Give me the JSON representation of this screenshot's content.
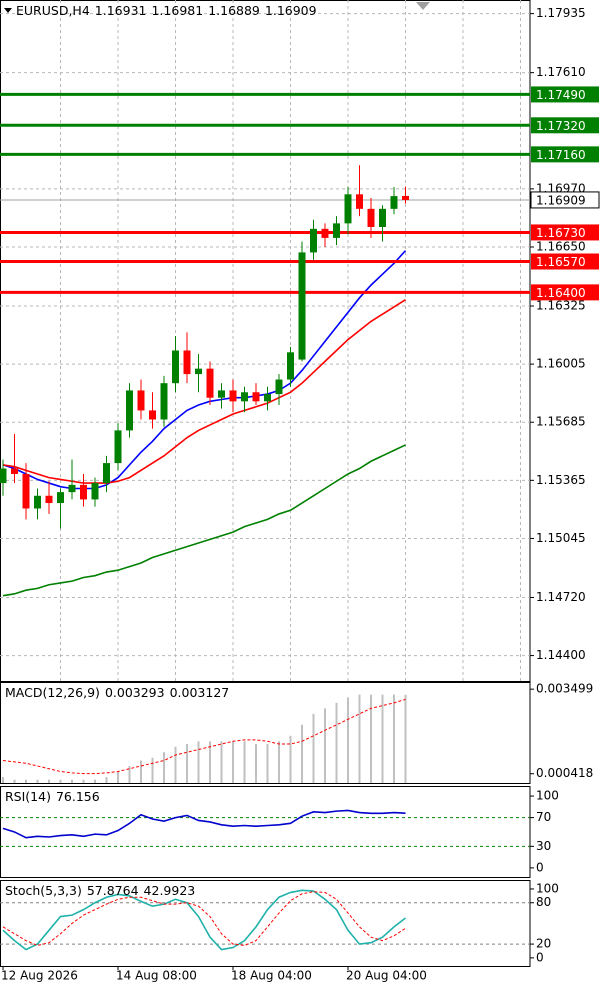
{
  "chart_data": [
    {
      "type": "candlestick",
      "title": "EURUSD,H4",
      "categories": [
        "12 Aug 2026",
        null,
        null,
        null,
        null,
        null,
        null,
        null,
        null,
        null,
        "14 Aug 08:00",
        null,
        null,
        null,
        null,
        null,
        null,
        null,
        null,
        null,
        "18 Aug 04:00",
        null,
        null,
        null,
        null,
        null,
        null,
        null,
        null,
        null,
        "20 Aug 04:00",
        null,
        null,
        null,
        null,
        null
      ],
      "open": [
        1.1535,
        1.1543,
        1.154,
        1.1521,
        1.1528,
        1.1524,
        1.153,
        1.1534,
        1.1526,
        1.1535,
        1.1546,
        1.1564,
        1.1586,
        1.1575,
        1.157,
        1.159,
        1.1608,
        1.1595,
        1.1598,
        1.1582,
        1.1586,
        1.158,
        1.1585,
        1.158,
        1.1584,
        1.1592,
        1.1603,
        1.1662,
        1.1675,
        1.167,
        1.1678,
        1.1694,
        1.1686,
        1.1676,
        1.1686,
        1.16931
      ],
      "high": [
        1.1548,
        1.1562,
        1.1546,
        1.1532,
        1.1536,
        1.1532,
        1.1548,
        1.154,
        1.1538,
        1.155,
        1.1568,
        1.159,
        1.1592,
        1.1585,
        1.1594,
        1.1616,
        1.1618,
        1.1606,
        1.1602,
        1.159,
        1.1592,
        1.1588,
        1.159,
        1.1588,
        1.1595,
        1.161,
        1.1668,
        1.168,
        1.1678,
        1.1682,
        1.1698,
        1.171,
        1.1692,
        1.1688,
        1.1698,
        1.16981
      ],
      "low": [
        1.1528,
        1.1535,
        1.1515,
        1.1515,
        1.1518,
        1.151,
        1.1526,
        1.1522,
        1.1522,
        1.153,
        1.1542,
        1.156,
        1.157,
        1.1565,
        1.1566,
        1.1585,
        1.159,
        1.1585,
        1.1578,
        1.1576,
        1.1574,
        1.1574,
        1.1578,
        1.1575,
        1.1578,
        1.1588,
        1.1602,
        1.1658,
        1.1665,
        1.1666,
        1.1672,
        1.1682,
        1.167,
        1.1668,
        1.1683,
        1.16889
      ],
      "close": [
        1.1543,
        1.154,
        1.1521,
        1.1528,
        1.1524,
        1.153,
        1.1534,
        1.1526,
        1.1535,
        1.1546,
        1.1564,
        1.1586,
        1.1575,
        1.157,
        1.159,
        1.1608,
        1.1595,
        1.1598,
        1.1582,
        1.1586,
        1.158,
        1.1585,
        1.158,
        1.1584,
        1.1592,
        1.1607,
        1.1662,
        1.1675,
        1.167,
        1.1678,
        1.1694,
        1.1686,
        1.1676,
        1.1686,
        1.1693,
        1.16909
      ],
      "up_color": "#008000",
      "down_color": "#ff0000",
      "lines": [
        {
          "color": "#0000ff",
          "values": [
            1.1545,
            1.1543,
            1.154,
            1.1537,
            1.1535,
            1.1533,
            1.1532,
            1.1532,
            1.1532,
            1.1534,
            1.1538,
            1.1545,
            1.1552,
            1.1558,
            1.1565,
            1.157,
            1.1575,
            1.1578,
            1.158,
            1.1581,
            1.1582,
            1.1582,
            1.1583,
            1.1584,
            1.1586,
            1.159,
            1.1597,
            1.1605,
            1.1613,
            1.1621,
            1.1629,
            1.1637,
            1.1644,
            1.165,
            1.1656,
            1.1663
          ]
        },
        {
          "color": "#ff0000",
          "values": [
            1.1545,
            1.1544,
            1.1542,
            1.154,
            1.1538,
            1.1537,
            1.1536,
            1.1535,
            1.1535,
            1.1535,
            1.1536,
            1.1538,
            1.1542,
            1.1546,
            1.155,
            1.1555,
            1.156,
            1.1564,
            1.1567,
            1.157,
            1.1573,
            1.1575,
            1.1577,
            1.1579,
            1.1582,
            1.1585,
            1.159,
            1.1596,
            1.1602,
            1.1608,
            1.1614,
            1.1619,
            1.1624,
            1.1628,
            1.1632,
            1.1636
          ]
        },
        {
          "color": "#008000",
          "values": [
            1.1473,
            1.1474,
            1.1476,
            1.1477,
            1.1479,
            1.148,
            1.1481,
            1.1483,
            1.1484,
            1.1486,
            1.1487,
            1.1489,
            1.1491,
            1.1494,
            1.1496,
            1.1498,
            1.15,
            1.1502,
            1.1504,
            1.1506,
            1.1508,
            1.1511,
            1.1513,
            1.1515,
            1.1518,
            1.152,
            1.1524,
            1.1528,
            1.1532,
            1.1536,
            1.154,
            1.1543,
            1.1547,
            1.155,
            1.1553,
            1.1556
          ]
        }
      ],
      "levels": [
        {
          "value": 1.1749,
          "label": "1.17490",
          "color": "#008000"
        },
        {
          "value": 1.1732,
          "label": "1.17320",
          "color": "#008000"
        },
        {
          "value": 1.1716,
          "label": "1.17160",
          "color": "#008000"
        },
        {
          "value": 1.1673,
          "label": "1.16730",
          "color": "#ff0000"
        },
        {
          "value": 1.1657,
          "label": "1.16570",
          "color": "#ff0000"
        },
        {
          "value": 1.164,
          "label": "1.16400",
          "color": "#ff0000"
        }
      ],
      "ylim": [
        1.1426,
        1.1801
      ],
      "yticks": [
        1.17935,
        {
          "value": 1.1761,
          "label": "1.17610"
        },
        {
          "value": 1.1697,
          "label": "1.16970"
        },
        {
          "value": 1.1665,
          "label": "1.16650"
        },
        1.16325,
        1.16005,
        1.15685,
        1.15365,
        1.15045,
        {
          "value": 1.1472,
          "label": "1.14720"
        },
        {
          "value": 1.144,
          "label": "1.14400"
        }
      ],
      "grid": true
    },
    {
      "type": "macd",
      "title": "MACD(12,26,9)",
      "histogram": {
        "color": "#c0c0c0",
        "values": [
          0.0003,
          0.0002,
          0.0002,
          0.0002,
          0.0002,
          0.0002,
          0.0002,
          0.0002,
          0.0002,
          0.0003,
          0.0005,
          0.0007,
          0.0009,
          0.001,
          0.0012,
          0.0014,
          0.0015,
          0.0016,
          0.0016,
          0.0016,
          0.0016,
          0.0016,
          0.0015,
          0.0015,
          0.0016,
          0.0018,
          0.0022,
          0.0026,
          0.0028,
          0.003,
          0.0032,
          0.0033,
          0.0033,
          0.0033,
          0.0033,
          0.003293
        ]
      },
      "signal": {
        "color": "#ff0000",
        "values": [
          0.0009,
          0.00085,
          0.0008,
          0.0007,
          0.0006,
          0.0005,
          0.00045,
          0.00042,
          0.00042,
          0.00045,
          0.0005,
          0.0006,
          0.0007,
          0.0008,
          0.0009,
          0.0011,
          0.0012,
          0.0013,
          0.0014,
          0.0015,
          0.0016,
          0.00165,
          0.00165,
          0.0016,
          0.0015,
          0.0015,
          0.0016,
          0.0018,
          0.002,
          0.0022,
          0.0024,
          0.0026,
          0.0028,
          0.0029,
          0.003,
          0.003127
        ]
      },
      "ylim": [
        8e-05,
        0.00376
      ],
      "yticks": [
        0.003499,
        0.000418
      ]
    },
    {
      "type": "rsi",
      "title": "RSI(14)",
      "series": [
        {
          "color": "#0000cd",
          "values": [
            55,
            50,
            42,
            44,
            43,
            45,
            46,
            44,
            47,
            46,
            52,
            62,
            74,
            68,
            65,
            70,
            73,
            66,
            64,
            60,
            58,
            59,
            58,
            59,
            60,
            62,
            72,
            78,
            77,
            79,
            80,
            77,
            76,
            76,
            77,
            76.156
          ]
        }
      ],
      "level_color": "#008000",
      "ylim": [
        -12.7,
        114
      ],
      "yticks": [
        100,
        70,
        30,
        0
      ]
    },
    {
      "type": "stochastic",
      "title": "Stoch(5,3,3)",
      "series": [
        {
          "color": "#20b2aa",
          "values": [
            40,
            25,
            12,
            20,
            40,
            60,
            62,
            70,
            80,
            88,
            92,
            90,
            82,
            75,
            78,
            85,
            80,
            60,
            30,
            12,
            15,
            25,
            45,
            70,
            88,
            95,
            98,
            97,
            85,
            70,
            40,
            20,
            22,
            30,
            45,
            57.8764
          ]
        },
        {
          "color": "#ff0000",
          "values": [
            45,
            35,
            25,
            18,
            22,
            35,
            50,
            62,
            70,
            78,
            85,
            88,
            88,
            83,
            78,
            78,
            80,
            75,
            60,
            35,
            20,
            18,
            25,
            45,
            65,
            83,
            93,
            96,
            95,
            85,
            65,
            45,
            30,
            25,
            32,
            42.9923
          ]
        }
      ],
      "level_color": "#808080",
      "ylim": [
        -11.8,
        113
      ],
      "yticks": [
        100,
        80,
        20,
        0
      ]
    }
  ]
}
